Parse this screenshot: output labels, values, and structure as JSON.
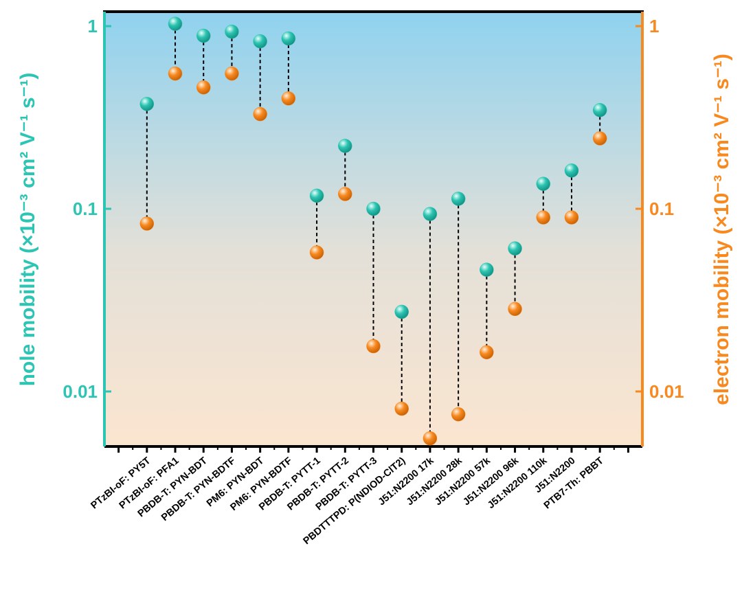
{
  "chart_data": {
    "type": "dumbbell",
    "y_label": "hole mobility (×10⁻³ cm² V⁻¹ s⁻¹)",
    "y2_label": "electron mobility (×10⁻³  cm² V⁻¹ s⁻¹)",
    "categories": [
      null,
      "PTzBI-oF: PY5T",
      "PTzBI-oF: PFA1",
      "PBDB-T: PYN-BDT",
      "PBDB-T: PYN-BDTF",
      "PM6: PYN-BDT",
      "PM6: PYN-BDTF",
      "PBDB-T: PYTT-1",
      "PBDB-T: PYTT-2",
      "PBDB-T: PYTT-3",
      "PBDTTTPD: P(NDIOD-ClT2)",
      "J51:N2200 17k",
      "J51:N2200 28k",
      "J51:N2200 57k",
      "J51:N2200 96k",
      "J51:N2200 110k",
      "J51:N2200",
      "PTB7-Th: PBBT",
      null
    ],
    "series": [
      {
        "color": "#2cc4b2",
        "values": [
          null,
          0.375,
          1.03,
          0.886,
          0.933,
          0.826,
          0.856,
          0.118,
          0.221,
          0.1,
          0.0273,
          0.0937,
          0.1135,
          0.0464,
          0.0607,
          0.137,
          0.162,
          0.347,
          null
        ]
      },
      {
        "color": "#f7891f",
        "axis": "y2",
        "values": [
          null,
          0.083,
          0.55,
          0.462,
          0.55,
          0.33,
          0.402,
          0.0577,
          0.1205,
          0.0177,
          0.00805,
          0.00554,
          0.0075,
          0.0164,
          0.0283,
          0.0897,
          0.0897,
          0.243,
          null
        ]
      }
    ],
    "yscale": "log",
    "ylim": [
      0.005,
      1.2
    ],
    "yticks": [
      0.01,
      0.1,
      1
    ],
    "y2lim": [
      0.005,
      1.2
    ],
    "y2ticks": [
      0.01,
      0.1,
      1
    ]
  }
}
